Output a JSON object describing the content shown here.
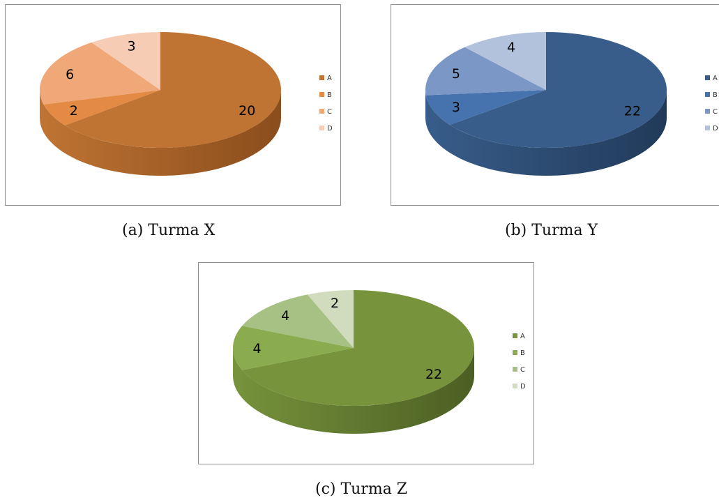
{
  "chart_data": [
    {
      "type": "pie",
      "categories": [
        "A",
        "B",
        "C",
        "D"
      ],
      "values": [
        20,
        2,
        6,
        3
      ],
      "colors": [
        "#bf7433",
        "#e38b45",
        "#f0a878",
        "#f6ccb5"
      ],
      "side_color": "#8a4d1c",
      "caption": "(a)  Turma X",
      "legend_position": "right"
    },
    {
      "type": "pie",
      "categories": [
        "A",
        "B",
        "C",
        "D"
      ],
      "values": [
        22,
        3,
        5,
        4
      ],
      "colors": [
        "#385d8a",
        "#4673ad",
        "#7b97c6",
        "#b2c1dc"
      ],
      "side_color": "#213a59",
      "caption": "(b)  Turma Y",
      "legend_position": "right"
    },
    {
      "type": "pie",
      "categories": [
        "A",
        "B",
        "C",
        "D"
      ],
      "values": [
        22,
        4,
        4,
        2
      ],
      "colors": [
        "#77933c",
        "#8aab4e",
        "#a6c183",
        "#d1dcbf"
      ],
      "side_color": "#4b5f23",
      "caption": "(c)  Turma Z",
      "legend_position": "right"
    }
  ]
}
